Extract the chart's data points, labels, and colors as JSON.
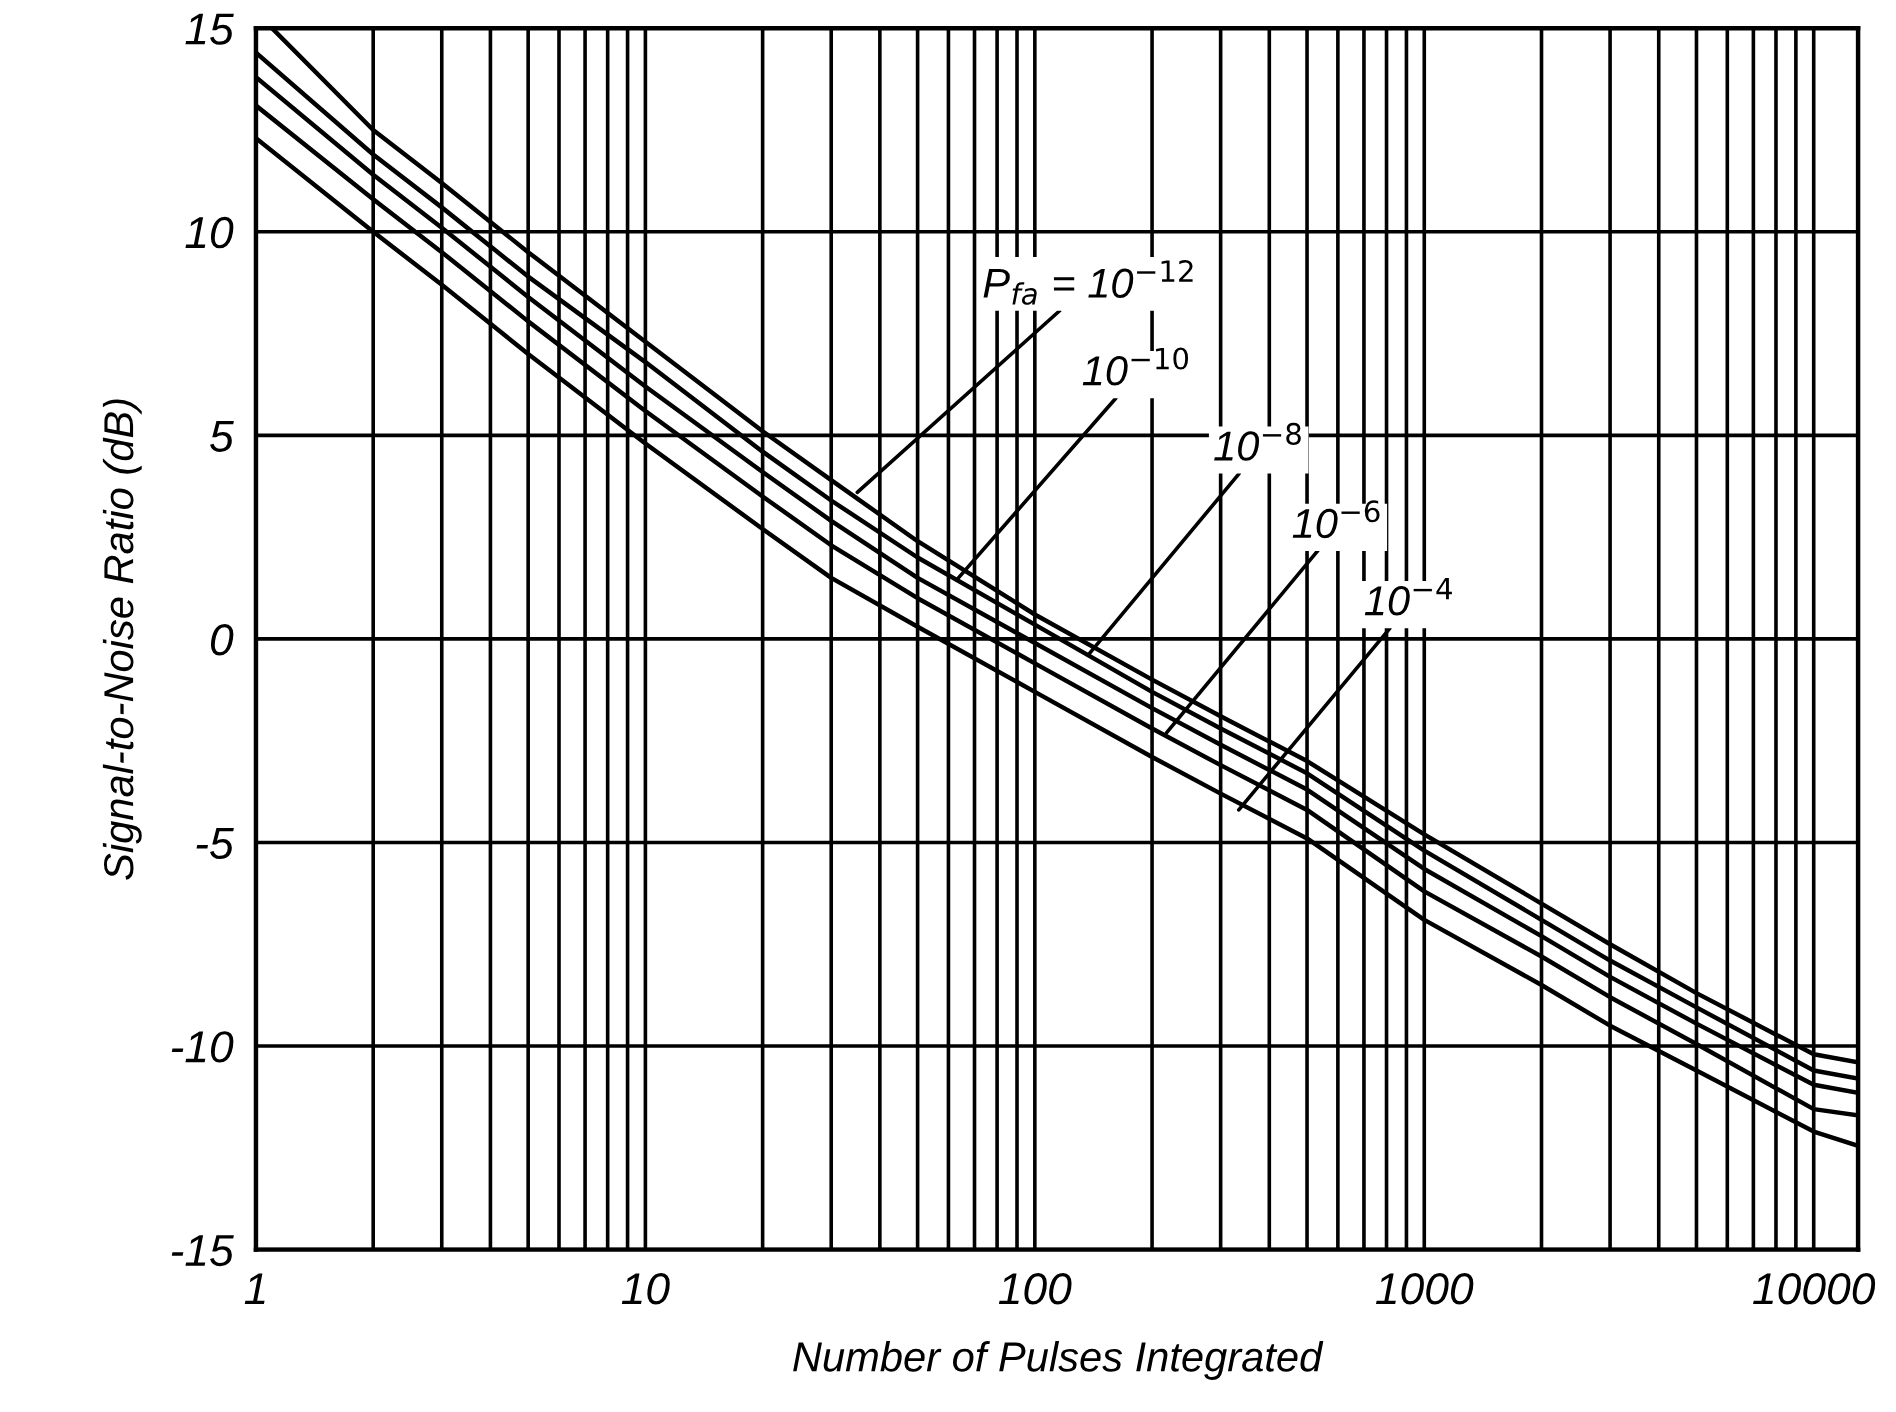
{
  "chart_data": {
    "type": "line",
    "xlabel": "Number of Pulses Integrated",
    "ylabel": "Signal-to-Noise Ratio (dB)",
    "log": "x",
    "grid": true,
    "legend": false,
    "marker": "none",
    "line_style": "solid",
    "xlim": [
      1,
      13000
    ],
    "ylim": [
      -15,
      15
    ],
    "yticks": [
      -15,
      -10,
      -5,
      0,
      5,
      10,
      15
    ],
    "xticks": [
      1,
      {
        "value": 2,
        "label": null
      },
      {
        "value": 3,
        "label": null
      },
      {
        "value": 4,
        "label": null
      },
      {
        "value": 5,
        "label": null
      },
      {
        "value": 6,
        "label": null
      },
      {
        "value": 7,
        "label": null
      },
      {
        "value": 8,
        "label": null
      },
      {
        "value": 9,
        "label": null
      },
      10,
      {
        "value": 20,
        "label": null
      },
      {
        "value": 30,
        "label": null
      },
      {
        "value": 40,
        "label": null
      },
      {
        "value": 50,
        "label": null
      },
      {
        "value": 60,
        "label": null
      },
      {
        "value": 70,
        "label": null
      },
      {
        "value": 80,
        "label": null
      },
      {
        "value": 90,
        "label": null
      },
      100,
      {
        "value": 200,
        "label": null
      },
      {
        "value": 300,
        "label": null
      },
      {
        "value": 400,
        "label": null
      },
      {
        "value": 500,
        "label": null
      },
      {
        "value": 600,
        "label": null
      },
      {
        "value": 700,
        "label": null
      },
      {
        "value": 800,
        "label": null
      },
      {
        "value": 900,
        "label": null
      },
      1000,
      {
        "value": 2000,
        "label": null
      },
      {
        "value": 3000,
        "label": null
      },
      {
        "value": 4000,
        "label": null
      },
      {
        "value": 5000,
        "label": null
      },
      {
        "value": 6000,
        "label": null
      },
      {
        "value": 7000,
        "label": null
      },
      {
        "value": 8000,
        "label": null
      },
      {
        "value": 9000,
        "label": null
      },
      10000
    ],
    "x": [
      1,
      2,
      3,
      5,
      10,
      20,
      30,
      50,
      100,
      200,
      300,
      500,
      1000,
      2000,
      3000,
      5000,
      10000,
      13000
    ],
    "series": [
      {
        "color": "#000000",
        "values": [
          12.3,
          10.0,
          8.7,
          7.0,
          4.8,
          2.7,
          1.5,
          0.3,
          -1.3,
          -2.9,
          -3.8,
          -4.9,
          -6.9,
          -8.5,
          -9.5,
          -10.6,
          -12.1,
          -12.45
        ]
      },
      {
        "color": "#000000",
        "values": [
          13.1,
          10.8,
          9.5,
          7.8,
          5.6,
          3.5,
          2.3,
          1.0,
          -0.6,
          -2.2,
          -3.1,
          -4.2,
          -6.2,
          -7.8,
          -8.8,
          -9.95,
          -11.55,
          -11.7
        ]
      },
      {
        "color": "#000000",
        "values": [
          13.8,
          11.4,
          10.1,
          8.4,
          6.2,
          4.1,
          2.9,
          1.5,
          -0.1,
          -1.7,
          -2.6,
          -3.7,
          -5.65,
          -7.3,
          -8.3,
          -9.45,
          -10.95,
          -11.15
        ]
      },
      {
        "color": "#000000",
        "values": [
          14.4,
          11.9,
          10.6,
          8.9,
          6.8,
          4.6,
          3.4,
          2.0,
          0.35,
          -1.3,
          -2.2,
          -3.3,
          -5.2,
          -6.9,
          -7.9,
          -9.05,
          -10.6,
          -10.8
        ]
      },
      {
        "color": "#000000",
        "x": [
          1.1,
          2,
          3,
          5,
          10,
          20,
          30,
          50,
          100,
          200,
          300,
          500,
          1000,
          2000,
          3000,
          5000,
          10000,
          13000
        ],
        "values": [
          15.0,
          12.5,
          11.2,
          9.5,
          7.3,
          5.1,
          3.9,
          2.4,
          0.6,
          -1.0,
          -1.9,
          -3.0,
          -4.8,
          -6.5,
          -7.5,
          -8.7,
          -10.2,
          -10.4
        ]
      }
    ],
    "annotations": [
      {
        "text": "P$_{fa}$ = 10$^{−12}$",
        "x": 35,
        "y": 3.6
      },
      {
        "text": "10$^{−10}$",
        "x": 63,
        "y": 1.45
      },
      {
        "text": "10$^{−8}$",
        "x": 137,
        "y": -0.4
      },
      {
        "text": "10$^{−6}$",
        "x": 218,
        "y": -2.3
      },
      {
        "text": "10$^{−4}$",
        "x": 334,
        "y": -4.2
      }
    ]
  }
}
